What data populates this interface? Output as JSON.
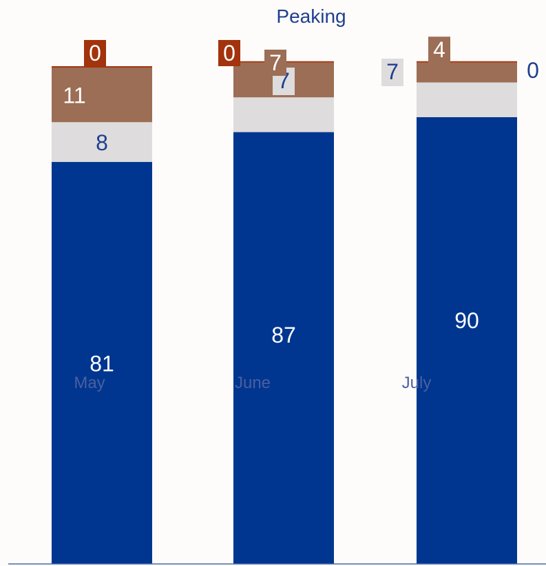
{
  "chart_data": {
    "type": "bar",
    "stacked": true,
    "title": "Peaking",
    "categories": [
      "May",
      "June",
      "July"
    ],
    "ylim": [
      0,
      100
    ],
    "grid": false,
    "legend": "none",
    "series": [
      {
        "values": [
          81,
          87,
          90
        ],
        "color": "#00368f"
      },
      {
        "values": [
          8,
          7,
          7
        ],
        "color": "#dedcdc"
      },
      {
        "values": [
          11,
          7,
          4
        ],
        "color": "#9c6e55"
      },
      {
        "values": [
          0,
          0,
          0
        ],
        "color": "#a2330c"
      }
    ]
  },
  "colors": {
    "title": "#1f3f8f",
    "category_text": "#4a5fa0",
    "axis": "#4a6aa8",
    "label_box_light": "#dedcdc",
    "label_text_dark": "#1f3f8f",
    "label_text_light": "#ffffff"
  }
}
